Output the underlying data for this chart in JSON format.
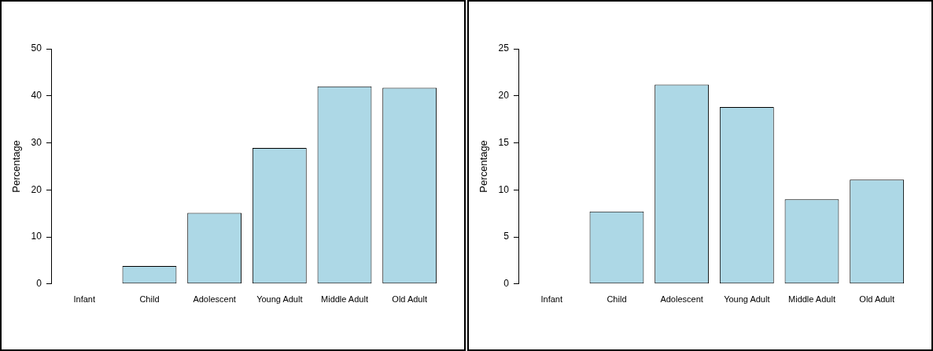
{
  "chart_data": [
    {
      "type": "bar",
      "ylabel": "Percentage",
      "categories": [
        "Infant",
        "Child",
        "Adolescent",
        "Young Adult",
        "Middle Adult",
        "Old Adult"
      ],
      "values": [
        0,
        3.8,
        15.1,
        28.9,
        42.0,
        41.7
      ],
      "color": "#add8e6",
      "ylim": [
        0,
        50
      ],
      "yticks": [
        0,
        10,
        20,
        30,
        40,
        50
      ],
      "grid": false,
      "legend": false
    },
    {
      "type": "bar",
      "ylabel": "Percentage",
      "categories": [
        "Infant",
        "Child",
        "Adolescent",
        "Young Adult",
        "Middle Adult",
        "Old Adult"
      ],
      "values": [
        0,
        7.7,
        21.2,
        18.8,
        9.0,
        11.1
      ],
      "color": "#add8e6",
      "ylim": [
        0,
        25
      ],
      "yticks": [
        0,
        5,
        10,
        15,
        20,
        25
      ],
      "grid": false,
      "legend": false
    }
  ]
}
